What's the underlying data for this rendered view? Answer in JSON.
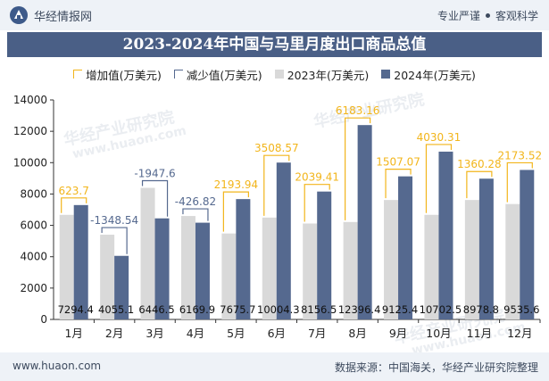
{
  "header": {
    "brand_name": "华经情报网",
    "tagline_1": "专业严谨",
    "tagline_2": "客观科学"
  },
  "footer": {
    "website": "www.huaon.com",
    "source": "数据来源：中国海关，华经产业研究院整理"
  },
  "watermarks": [
    "华经产业研究院",
    "www.huaon.com"
  ],
  "colors": {
    "bar_2023": "#d9d9d9",
    "bar_2024": "#55698f",
    "increase_bracket": "#f2b51b",
    "decrease_bracket": "#55698f",
    "title_bg": "#4a5f86"
  },
  "chart_data": {
    "type": "bar",
    "title": "2023-2024年中国与马里月度出口商品总值",
    "categories": [
      "1月",
      "2月",
      "3月",
      "4月",
      "5月",
      "6月",
      "7月",
      "8月",
      "9月",
      "10月",
      "11月",
      "12月"
    ],
    "series": [
      {
        "name": "2023年(万美元)",
        "values": [
          6670.7,
          5403.6,
          8394.1,
          6596.7,
          5481.8,
          6495.7,
          6117.1,
          6213.3,
          7618.3,
          6672.2,
          7618.5,
          7362.1
        ]
      },
      {
        "name": "2024年(万美元)",
        "values": [
          7294.4,
          4055.1,
          6446.5,
          6169.9,
          7675.7,
          10004.3,
          8156.5,
          12396.4,
          9125.4,
          10702.5,
          8978.8,
          9535.6
        ]
      }
    ],
    "change_legend": {
      "increase": "增加值(万美元)",
      "decrease": "减少值(万美元)"
    },
    "change_values": [
      623.7,
      -1348.54,
      -1947.6,
      -426.82,
      2193.94,
      3508.57,
      2039.41,
      6183.16,
      1507.07,
      4030.31,
      1360.28,
      2173.52
    ],
    "change_labels": [
      "623.7",
      "-1348.54",
      "-1947.6",
      "-426.82",
      "2193.94",
      "3508.57",
      "2039.41",
      "6183.16",
      "1507.07",
      "4030.31",
      "1360.28",
      "2173.52"
    ],
    "value_labels_2024": [
      "7294.4",
      "4055.1",
      "6446.5",
      "6169.9",
      "7675.7",
      "10004.3",
      "8156.5",
      "12396.4",
      "9125.4",
      "10702.5",
      "8978.8",
      "9535.6"
    ],
    "ylim": [
      0,
      14000
    ],
    "yticks": [
      "0",
      "2000",
      "4000",
      "6000",
      "8000",
      "10000",
      "12000",
      "14000"
    ],
    "grid": false,
    "legend_position": "top"
  }
}
